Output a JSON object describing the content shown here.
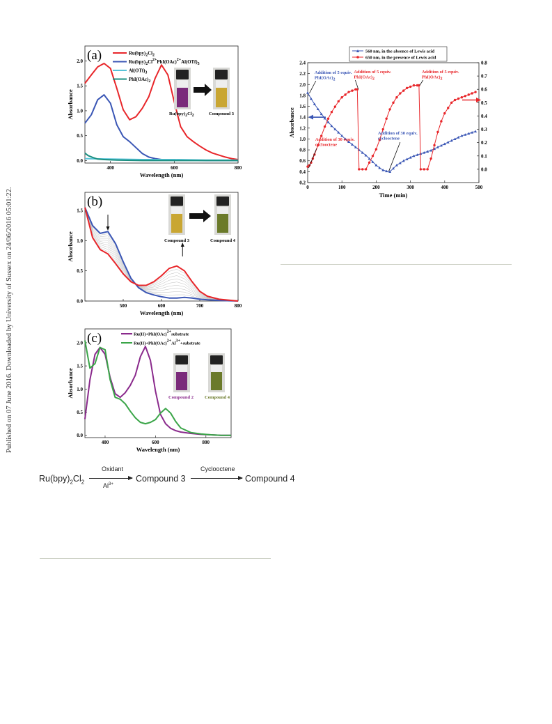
{
  "sidebar": {
    "text": "Published on 07 June 2016. Downloaded by University of Sussex on 24/06/2016 05:01:22."
  },
  "scheme": {
    "start": "Ru(bpy)",
    "start_sub": "2",
    "start_end": "Cl",
    "start_sub2": "2",
    "oxidant": "Oxidant",
    "al": "Al",
    "al_sup": "3+",
    "compound3": "Compound 3",
    "cyclooctene": "Cyclooctene",
    "compound4": "Compound 4"
  },
  "chart_data": [
    {
      "id": "a",
      "type": "line",
      "panel_label": "(a)",
      "xlabel": "Wavelength (nm)",
      "ylabel": "Absorbance",
      "xlim": [
        320,
        800
      ],
      "ylim": [
        -0.05,
        2.3
      ],
      "xticks": [
        "400",
        "600",
        "800"
      ],
      "yticks": [
        "0.0",
        "0.5",
        "1.0",
        "1.5",
        "2.0"
      ],
      "legend": [
        {
          "text": "Ru(bpy)2Cl2",
          "color": "#e8262a"
        },
        {
          "text": "Ru(bpy)2Cl2+PhI(OAc)2+Al(OTf)3",
          "color": "#3a56b5"
        },
        {
          "text": "Al(OTf)3",
          "color": "#57c3d8"
        },
        {
          "text": "PhI(OAc)2",
          "color": "#1a8f80"
        }
      ],
      "inset": {
        "left": "Ru(bpy)2Cl2",
        "right": "Compound 3",
        "left_color": "#7a2a7a",
        "right_color": "#c9a632"
      },
      "series": [
        {
          "name": "Ru(bpy)2Cl2",
          "color": "#e8262a",
          "x": [
            320,
            340,
            360,
            380,
            400,
            420,
            440,
            460,
            480,
            500,
            520,
            540,
            560,
            580,
            600,
            620,
            640,
            660,
            680,
            700,
            720,
            740,
            760,
            780,
            800
          ],
          "y": [
            1.55,
            1.72,
            1.88,
            1.95,
            1.85,
            1.45,
            1.02,
            0.82,
            0.88,
            1.05,
            1.28,
            1.65,
            1.92,
            1.72,
            1.18,
            0.68,
            0.48,
            0.38,
            0.29,
            0.21,
            0.15,
            0.11,
            0.07,
            0.04,
            0.02
          ]
        },
        {
          "name": "Ru(bpy)2Cl2+PhI(OAc)2+Al(OTf)3",
          "color": "#3a56b5",
          "x": [
            320,
            340,
            360,
            380,
            400,
            420,
            440,
            460,
            480,
            500,
            520,
            540,
            560,
            600,
            650,
            700,
            750,
            800
          ],
          "y": [
            0.75,
            0.92,
            1.22,
            1.32,
            1.15,
            0.72,
            0.48,
            0.38,
            0.26,
            0.14,
            0.07,
            0.04,
            0.02,
            0.01,
            0.01,
            0.0,
            0.0,
            0.0
          ]
        },
        {
          "name": "Al(OTf)3",
          "color": "#57c3d8",
          "x": [
            320,
            400,
            500,
            600,
            700,
            800
          ],
          "y": [
            0.04,
            0.03,
            0.02,
            0.02,
            0.01,
            0.01
          ]
        },
        {
          "name": "PhI(OAc)2",
          "color": "#1a8f80",
          "x": [
            320,
            330,
            345,
            360,
            380,
            420,
            500,
            800
          ],
          "y": [
            0.15,
            0.1,
            0.06,
            0.03,
            0.02,
            0.01,
            0.0,
            0.0
          ]
        }
      ]
    },
    {
      "id": "b",
      "type": "line",
      "panel_label": "(b)",
      "xlabel": "Wavelength (nm)",
      "ylabel": "Absorbance",
      "xlim": [
        400,
        800
      ],
      "ylim": [
        0.0,
        1.8
      ],
      "xticks": [
        "500",
        "600",
        "700",
        "800"
      ],
      "yticks": [
        "0.0",
        "0.5",
        "1.0",
        "1.5"
      ],
      "inset": {
        "left": "Compound 3",
        "right": "Compound 4",
        "left_color": "#c9a632",
        "right_color": "#6b7a2a"
      },
      "series": [
        {
          "name": "",
          "color": "#3a56b5",
          "x": [
            400,
            420,
            440,
            460,
            480,
            500,
            520,
            540,
            560,
            580,
            600,
            620,
            640,
            660,
            680,
            700,
            720,
            750,
            800
          ],
          "y": [
            1.55,
            1.25,
            1.12,
            1.15,
            0.95,
            0.65,
            0.38,
            0.22,
            0.14,
            0.1,
            0.07,
            0.05,
            0.05,
            0.06,
            0.05,
            0.03,
            0.02,
            0.01,
            0.0
          ]
        },
        {
          "name": "",
          "color": "#e8262a",
          "x": [
            400,
            420,
            440,
            460,
            480,
            500,
            520,
            540,
            560,
            580,
            600,
            620,
            640,
            660,
            680,
            700,
            720,
            750,
            800
          ],
          "y": [
            1.55,
            1.05,
            0.85,
            0.78,
            0.62,
            0.45,
            0.32,
            0.26,
            0.26,
            0.32,
            0.42,
            0.54,
            0.58,
            0.5,
            0.32,
            0.16,
            0.08,
            0.03,
            0.0
          ]
        }
      ]
    },
    {
      "id": "c",
      "type": "line",
      "panel_label": "(c)",
      "xlabel": "Wavelength (nm)",
      "ylabel": "Absorbance",
      "xlim": [
        320,
        900
      ],
      "ylim": [
        -0.05,
        2.3
      ],
      "xticks": [
        "400",
        "600",
        "800"
      ],
      "yticks": [
        "0.0",
        "0.5",
        "1.0",
        "1.5",
        "2.0"
      ],
      "legend": [
        {
          "text": "Ru(II)+PhI(OAc)2+substrate",
          "color": "#8a2a8c"
        },
        {
          "text": "Ru(II)+PhI(OAc)2+Al3++substrate",
          "color": "#3aa548"
        }
      ],
      "inset": {
        "left": "Compound 2",
        "right": "Compound 4",
        "left_color": "#7a2a7a",
        "right_color": "#6b7a2a"
      },
      "series": [
        {
          "name": "Ru(II)+PhI(OAc)2+substrate",
          "color": "#8a2a8c",
          "x": [
            320,
            340,
            360,
            380,
            400,
            420,
            440,
            460,
            480,
            500,
            520,
            540,
            560,
            580,
            600,
            620,
            640,
            660,
            680,
            700,
            740,
            780,
            820,
            860,
            900
          ],
          "y": [
            0.35,
            1.2,
            1.75,
            1.9,
            1.75,
            1.25,
            0.9,
            0.82,
            0.92,
            1.08,
            1.3,
            1.7,
            1.92,
            1.62,
            0.95,
            0.45,
            0.25,
            0.15,
            0.1,
            0.07,
            0.04,
            0.02,
            0.01,
            0.0,
            0.0
          ]
        },
        {
          "name": "Ru(II)+PhI(OAc)2+Al3++substrate",
          "color": "#3aa548",
          "x": [
            320,
            340,
            360,
            380,
            400,
            420,
            440,
            460,
            480,
            500,
            520,
            540,
            560,
            580,
            600,
            620,
            640,
            660,
            680,
            700,
            740,
            780,
            820,
            860,
            900
          ],
          "y": [
            2.05,
            1.45,
            1.55,
            1.9,
            1.85,
            1.2,
            0.82,
            0.78,
            0.68,
            0.52,
            0.38,
            0.28,
            0.25,
            0.28,
            0.34,
            0.48,
            0.58,
            0.48,
            0.3,
            0.16,
            0.06,
            0.03,
            0.01,
            0.0,
            0.0
          ]
        }
      ]
    },
    {
      "id": "d",
      "type": "line",
      "xlabel": "Time (min)",
      "ylabel": "Absorbance",
      "xlim": [
        0,
        500
      ],
      "ylim": [
        0.2,
        2.4
      ],
      "y2lim": [
        -0.1,
        0.8
      ],
      "xticks": [
        "0",
        "100",
        "200",
        "300",
        "400",
        "500"
      ],
      "yticks": [
        "0.2",
        "0.4",
        "0.6",
        "0.8",
        "1.0",
        "1.2",
        "1.4",
        "1.6",
        "1.8",
        "2.0",
        "2.2",
        "2.4"
      ],
      "y2ticks": [
        "0.0",
        "0.1",
        "0.2",
        "0.3",
        "0.4",
        "0.5",
        "0.6",
        "0.7",
        "0.8"
      ],
      "legend": [
        {
          "text": "560 nm, in the absence of Lewis acid",
          "color": "#3a56b5"
        },
        {
          "text": "650 nm, in the presence of Lewis acid",
          "color": "#e8262a"
        }
      ],
      "annotations": [
        {
          "text": "Addition of 5 equiv.",
          "text2": "PhI(OAc)2",
          "color": "#3a56b5"
        },
        {
          "text": "Addition of 5 equiv.",
          "text2": "PhI(OAc)2",
          "color": "#e8262a"
        },
        {
          "text": "Addition of 5 equiv.",
          "text2": "PhI(OAc)2",
          "color": "#e8262a"
        },
        {
          "text": "Addition of 30 equiv.",
          "text2": "cyclooctene",
          "color": "#e8262a"
        },
        {
          "text": "Addition of 30 equiv.",
          "text2": "cyclooctene",
          "color": "#3a56b5"
        }
      ],
      "series": [
        {
          "name": "560 nm, in the absence of Lewis acid",
          "color": "#3a56b5",
          "axis": "left",
          "marker": "triangle",
          "x": [
            0,
            10,
            20,
            30,
            40,
            50,
            60,
            70,
            80,
            90,
            100,
            110,
            120,
            130,
            140,
            150,
            160,
            170,
            180,
            190,
            200,
            210,
            220,
            230,
            240,
            250,
            260,
            270,
            280,
            290,
            300,
            310,
            320,
            330,
            340,
            350,
            360,
            370,
            380,
            390,
            400,
            410,
            420,
            430,
            440,
            450,
            460,
            470,
            480,
            490
          ],
          "y": [
            1.85,
            1.74,
            1.64,
            1.55,
            1.46,
            1.38,
            1.31,
            1.24,
            1.18,
            1.12,
            1.06,
            1.0,
            0.95,
            0.9,
            0.85,
            0.8,
            0.75,
            0.7,
            0.64,
            0.58,
            0.52,
            0.47,
            0.43,
            0.41,
            0.4,
            0.46,
            0.52,
            0.56,
            0.6,
            0.63,
            0.66,
            0.69,
            0.71,
            0.73,
            0.75,
            0.77,
            0.79,
            0.82,
            0.85,
            0.88,
            0.91,
            0.94,
            0.97,
            1.0,
            1.03,
            1.06,
            1.08,
            1.1,
            1.12,
            1.14
          ]
        },
        {
          "name": "650 nm, in the presence of Lewis acid",
          "color": "#e8262a",
          "axis": "right",
          "marker": "circle",
          "x": [
            0,
            5,
            10,
            15,
            20,
            30,
            40,
            50,
            60,
            70,
            80,
            90,
            100,
            110,
            120,
            130,
            140,
            145,
            150,
            160,
            170,
            180,
            190,
            200,
            210,
            220,
            230,
            240,
            250,
            260,
            270,
            280,
            290,
            300,
            310,
            320,
            325,
            330,
            340,
            350,
            360,
            370,
            380,
            390,
            400,
            410,
            420,
            430,
            440,
            450,
            460,
            470,
            480,
            490
          ],
          "y": [
            0.02,
            0.03,
            0.05,
            0.08,
            0.11,
            0.18,
            0.25,
            0.32,
            0.38,
            0.43,
            0.47,
            0.51,
            0.54,
            0.56,
            0.58,
            0.59,
            0.6,
            0.6,
            0.0,
            0.0,
            0.0,
            0.05,
            0.1,
            0.15,
            0.22,
            0.3,
            0.38,
            0.45,
            0.5,
            0.54,
            0.57,
            0.59,
            0.61,
            0.62,
            0.63,
            0.63,
            0.63,
            0.0,
            0.0,
            0.0,
            0.08,
            0.18,
            0.28,
            0.36,
            0.42,
            0.46,
            0.5,
            0.52,
            0.53,
            0.54,
            0.55,
            0.56,
            0.57,
            0.58
          ]
        }
      ]
    }
  ]
}
